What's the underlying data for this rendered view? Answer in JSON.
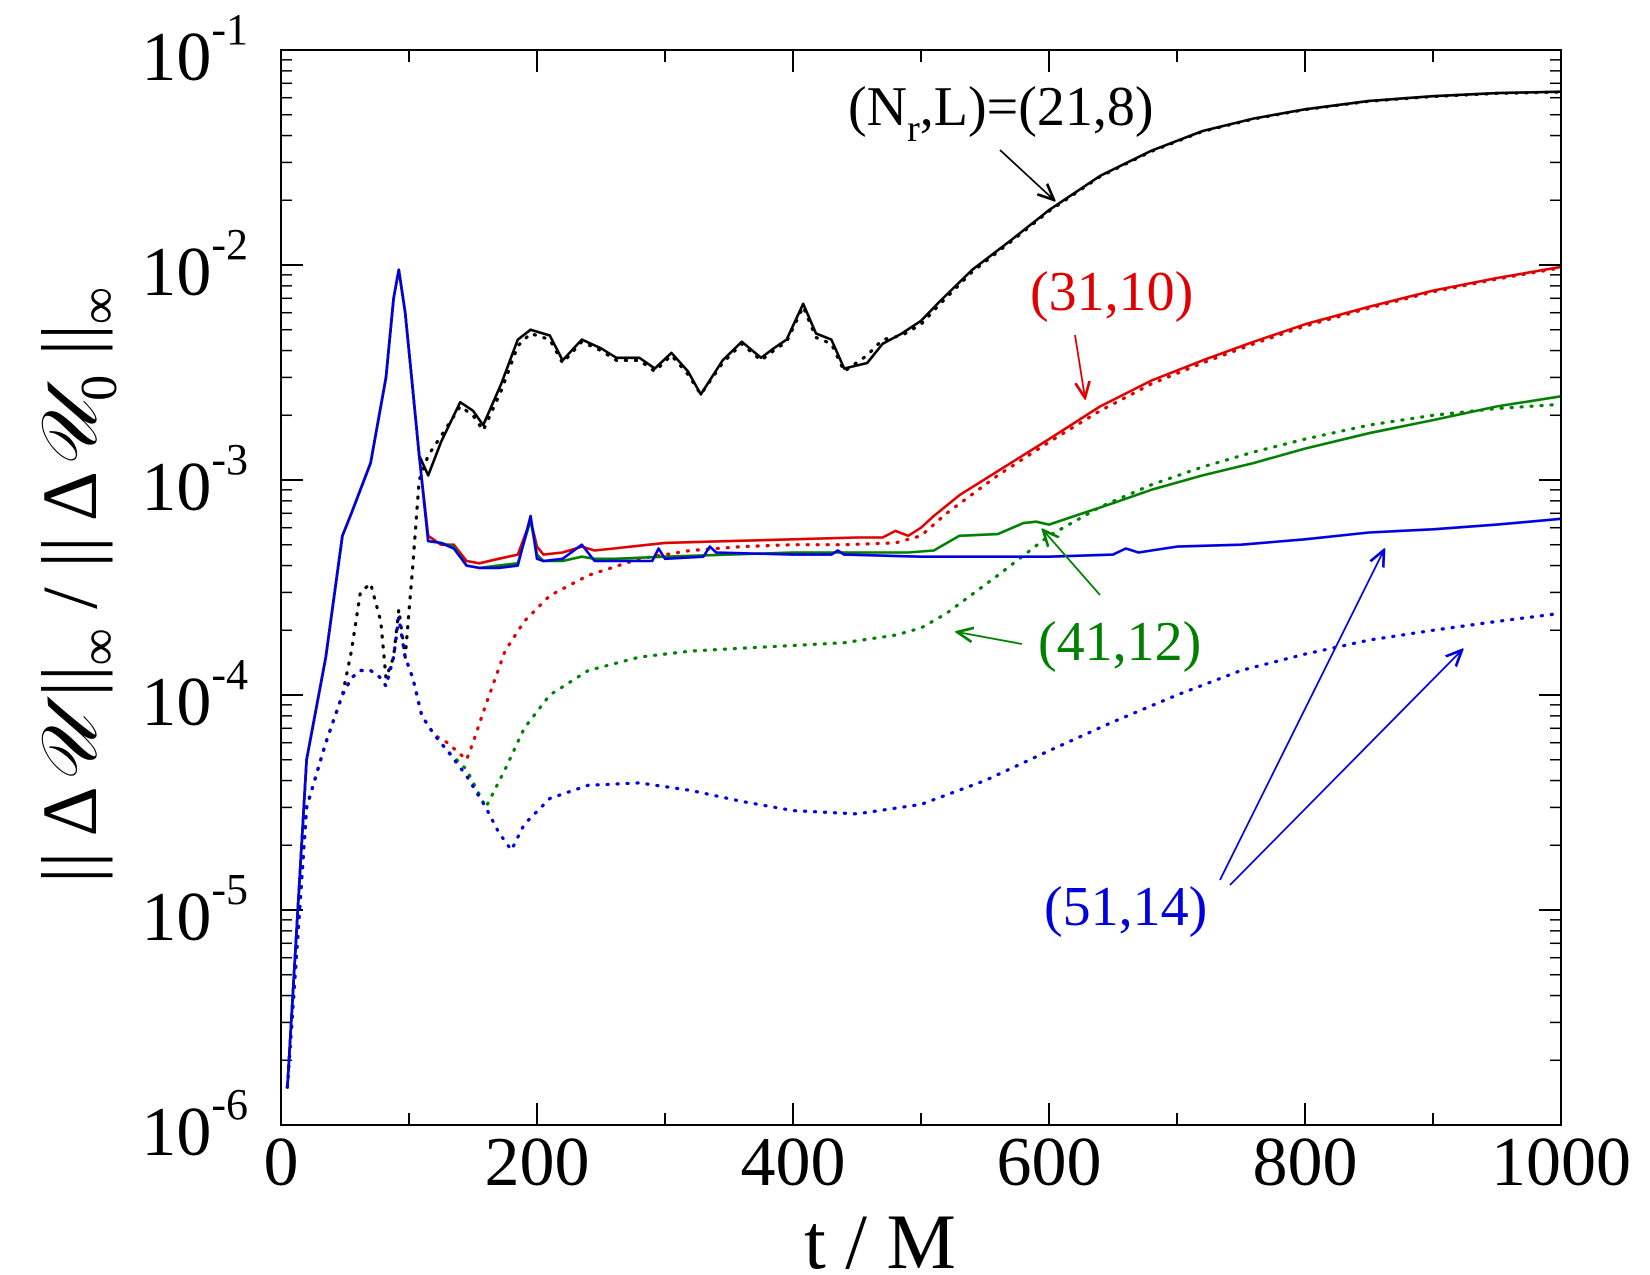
{
  "chart_data": {
    "type": "line",
    "xlabel": "t / M",
    "ylabel_parts": [
      "|| Δ",
      "𝒰",
      " ||",
      "∞",
      " / || Δ",
      "𝒰",
      "0",
      " ||",
      "∞"
    ],
    "xlim": [
      0,
      1000
    ],
    "ylim": [
      1e-06,
      0.1
    ],
    "yscale": "log",
    "x_ticks": [
      {
        "value": 0,
        "label": "0"
      },
      {
        "value": 200,
        "label": "200"
      },
      {
        "value": 400,
        "label": "400"
      },
      {
        "value": 600,
        "label": "600"
      },
      {
        "value": 800,
        "label": "800"
      },
      {
        "value": 1000,
        "label": "1000"
      }
    ],
    "y_ticks": [
      {
        "value": 1e-06,
        "base": "10",
        "exp": "-6"
      },
      {
        "value": 1e-05,
        "base": "10",
        "exp": "-5"
      },
      {
        "value": 0.0001,
        "base": "10",
        "exp": "-4"
      },
      {
        "value": 0.001,
        "base": "10",
        "exp": "-3"
      },
      {
        "value": 0.01,
        "base": "10",
        "exp": "-2"
      },
      {
        "value": 0.1,
        "base": "10",
        "exp": "-1"
      }
    ],
    "grid": false,
    "series": [
      {
        "key": "s21_8_solid",
        "color": "#000000",
        "style": "solid",
        "x": [
          5,
          20,
          35,
          48,
          55,
          70,
          82,
          88,
          92,
          97,
          102,
          108,
          115,
          125,
          140,
          150,
          158,
          172,
          185,
          195,
          210,
          220,
          235,
          250,
          262,
          280,
          292,
          305,
          318,
          328,
          345,
          360,
          375,
          385,
          395,
          408,
          418,
          430,
          440,
          458,
          470,
          485,
          500,
          515,
          540,
          570,
          600,
          640,
          680,
          720,
          760,
          800,
          850,
          900,
          950,
          1000
        ],
        "y": [
          1.5e-06,
          5e-05,
          0.00015,
          0.00055,
          0.0007,
          0.0012,
          0.003,
          0.007,
          0.0095,
          0.006,
          0.003,
          0.0013,
          0.00105,
          0.0015,
          0.0023,
          0.0021,
          0.0018,
          0.0028,
          0.0045,
          0.005,
          0.0047,
          0.0036,
          0.0045,
          0.0041,
          0.0037,
          0.0037,
          0.0033,
          0.0039,
          0.0032,
          0.0025,
          0.0036,
          0.0044,
          0.0037,
          0.0041,
          0.0045,
          0.0066,
          0.0048,
          0.0045,
          0.0033,
          0.0035,
          0.0043,
          0.0048,
          0.0055,
          0.0068,
          0.0095,
          0.013,
          0.018,
          0.026,
          0.034,
          0.042,
          0.048,
          0.053,
          0.058,
          0.061,
          0.063,
          0.064
        ]
      },
      {
        "key": "s21_8_dotted",
        "color": "#000000",
        "style": "dotted",
        "x": [
          5,
          20,
          35,
          48,
          55,
          62,
          70,
          78,
          82,
          88,
          92,
          97,
          103,
          108,
          115,
          125,
          140,
          150,
          158,
          172,
          185,
          195,
          210,
          220,
          235,
          250,
          262,
          280,
          292,
          305,
          318,
          328,
          345,
          360,
          375,
          385,
          395,
          408,
          418,
          430,
          440,
          458,
          470,
          485,
          500,
          515,
          540,
          570,
          600,
          640,
          680,
          720,
          760,
          800,
          850,
          900,
          950,
          1000
        ],
        "y": [
          1.5e-06,
          3e-05,
          6e-05,
          0.0001,
          0.00016,
          0.0003,
          0.00033,
          0.00022,
          0.00012,
          0.00015,
          0.00025,
          0.00015,
          0.0004,
          0.001,
          0.0013,
          0.0016,
          0.0022,
          0.002,
          0.0017,
          0.0026,
          0.0042,
          0.0048,
          0.0045,
          0.0035,
          0.0044,
          0.004,
          0.0036,
          0.0036,
          0.0032,
          0.0038,
          0.0031,
          0.0025,
          0.0035,
          0.0043,
          0.0036,
          0.004,
          0.0044,
          0.0064,
          0.0046,
          0.0043,
          0.0032,
          0.0038,
          0.0045,
          0.0047,
          0.0053,
          0.0066,
          0.0093,
          0.0128,
          0.0178,
          0.0258,
          0.0338,
          0.0418,
          0.0478,
          0.0528,
          0.0578,
          0.0608,
          0.0628,
          0.0638
        ]
      },
      {
        "key": "s31_10_solid",
        "color": "#e00000",
        "style": "solid",
        "x": [
          5,
          20,
          35,
          48,
          55,
          70,
          82,
          88,
          92,
          97,
          102,
          108,
          115,
          125,
          135,
          145,
          155,
          170,
          185,
          195,
          200,
          205,
          220,
          235,
          245,
          260,
          300,
          350,
          400,
          450,
          470,
          480,
          490,
          500,
          510,
          530,
          560,
          600,
          640,
          680,
          720,
          760,
          800,
          850,
          900,
          950,
          1000
        ],
        "y": [
          1.5e-06,
          5e-05,
          0.00015,
          0.00055,
          0.0007,
          0.0012,
          0.003,
          0.007,
          0.0095,
          0.006,
          0.003,
          0.0013,
          0.00055,
          0.0005,
          0.0005,
          0.00042,
          0.00041,
          0.00043,
          0.00045,
          0.00065,
          0.00049,
          0.00045,
          0.00046,
          0.00049,
          0.00047,
          0.00048,
          0.00051,
          0.00052,
          0.00053,
          0.00054,
          0.00054,
          0.00058,
          0.00055,
          0.0006,
          0.00068,
          0.00085,
          0.0011,
          0.00155,
          0.0022,
          0.0029,
          0.0036,
          0.0044,
          0.0053,
          0.0064,
          0.0076,
          0.0087,
          0.0098
        ]
      },
      {
        "key": "s31_10_dotted",
        "color": "#e00000",
        "style": "dotted",
        "x": [
          5,
          20,
          35,
          48,
          55,
          62,
          70,
          78,
          82,
          88,
          92,
          97,
          103,
          110,
          120,
          130,
          145,
          150,
          160,
          175,
          190,
          210,
          240,
          280,
          320,
          360,
          400,
          440,
          480,
          500,
          520,
          560,
          600,
          640,
          680,
          720,
          760,
          800,
          850,
          900,
          950,
          1000
        ],
        "y": [
          1.5e-06,
          3e-05,
          6e-05,
          0.0001,
          0.00012,
          0.00013,
          0.00013,
          0.00012,
          0.00011,
          0.00015,
          0.00023,
          0.00015,
          0.00012,
          8e-05,
          6.5e-05,
          6e-05,
          5e-05,
          6e-05,
          9e-05,
          0.00016,
          0.00022,
          0.00029,
          0.00036,
          0.00043,
          0.00047,
          0.00049,
          0.0005,
          0.0005,
          0.00051,
          0.00055,
          0.0007,
          0.00105,
          0.0015,
          0.0021,
          0.0028,
          0.0035,
          0.0043,
          0.0052,
          0.0063,
          0.0075,
          0.0086,
          0.0097
        ]
      },
      {
        "key": "s41_12_solid",
        "color": "#008000",
        "style": "solid",
        "x": [
          5,
          20,
          35,
          48,
          55,
          70,
          82,
          88,
          92,
          97,
          102,
          108,
          115,
          125,
          135,
          145,
          155,
          170,
          185,
          195,
          200,
          205,
          220,
          235,
          245,
          260,
          300,
          350,
          400,
          450,
          490,
          510,
          530,
          560,
          580,
          590,
          600,
          620,
          650,
          680,
          720,
          760,
          800,
          850,
          900,
          950,
          1000
        ],
        "y": [
          1.5e-06,
          5e-05,
          0.00015,
          0.00055,
          0.0007,
          0.0012,
          0.003,
          0.007,
          0.0095,
          0.006,
          0.003,
          0.0013,
          0.00052,
          0.00051,
          0.00049,
          0.0004,
          0.00039,
          0.0004,
          0.00041,
          0.00065,
          0.00045,
          0.00042,
          0.00042,
          0.00044,
          0.00043,
          0.00043,
          0.00044,
          0.00045,
          0.00046,
          0.00046,
          0.00046,
          0.00047,
          0.00055,
          0.00056,
          0.00063,
          0.00064,
          0.00062,
          0.00068,
          0.00078,
          0.0009,
          0.00105,
          0.0012,
          0.0014,
          0.00165,
          0.0019,
          0.0022,
          0.00245
        ]
      },
      {
        "key": "s41_12_dotted",
        "color": "#008000",
        "style": "dotted",
        "x": [
          5,
          20,
          35,
          48,
          55,
          62,
          70,
          78,
          82,
          88,
          92,
          97,
          103,
          110,
          120,
          130,
          145,
          160,
          175,
          190,
          210,
          240,
          280,
          320,
          360,
          400,
          440,
          480,
          500,
          520,
          560,
          600,
          640,
          680,
          720,
          760,
          800,
          850,
          900,
          950,
          1000
        ],
        "y": [
          1.5e-06,
          3e-05,
          6e-05,
          0.0001,
          0.00012,
          0.00013,
          0.00013,
          0.00012,
          0.00011,
          0.00015,
          0.00023,
          0.00015,
          0.00012,
          8e-05,
          6.5e-05,
          5.5e-05,
          4.5e-05,
          3e-05,
          4.5e-05,
          7e-05,
          0.0001,
          0.00013,
          0.00015,
          0.00016,
          0.000165,
          0.00017,
          0.000175,
          0.00019,
          0.000205,
          0.00024,
          0.00036,
          0.00055,
          0.00075,
          0.00095,
          0.00115,
          0.00135,
          0.00155,
          0.0018,
          0.002,
          0.00215,
          0.00225
        ]
      },
      {
        "key": "s51_14_solid",
        "color": "#0000e0",
        "style": "solid",
        "x": [
          5,
          20,
          35,
          48,
          55,
          70,
          82,
          88,
          92,
          97,
          102,
          108,
          115,
          125,
          135,
          145,
          155,
          170,
          185,
          195,
          200,
          205,
          220,
          235,
          245,
          260,
          290,
          295,
          300,
          330,
          335,
          340,
          400,
          430,
          435,
          440,
          500,
          600,
          650,
          660,
          670,
          680,
          700,
          750,
          800,
          850,
          900,
          950,
          1000
        ],
        "y": [
          1.5e-06,
          5e-05,
          0.00015,
          0.00055,
          0.0007,
          0.0012,
          0.003,
          0.007,
          0.0095,
          0.006,
          0.003,
          0.0013,
          0.00052,
          0.00051,
          0.00048,
          0.0004,
          0.00039,
          0.00039,
          0.0004,
          0.00068,
          0.00043,
          0.00042,
          0.00043,
          0.0005,
          0.00042,
          0.00042,
          0.00042,
          0.00048,
          0.00043,
          0.00044,
          0.00049,
          0.00046,
          0.00045,
          0.00045,
          0.00047,
          0.00045,
          0.00044,
          0.00044,
          0.00045,
          0.00048,
          0.00046,
          0.00047,
          0.00049,
          0.0005,
          0.00053,
          0.00057,
          0.00059,
          0.00062,
          0.00066
        ]
      },
      {
        "key": "s51_14_dotted",
        "color": "#0000e0",
        "style": "dotted",
        "x": [
          5,
          20,
          35,
          48,
          55,
          62,
          70,
          78,
          82,
          88,
          92,
          97,
          103,
          110,
          120,
          130,
          145,
          160,
          170,
          180,
          190,
          210,
          240,
          280,
          320,
          360,
          400,
          450,
          500,
          550,
          600,
          650,
          700,
          750,
          800,
          850,
          900,
          950,
          1000
        ],
        "y": [
          1.5e-06,
          3e-05,
          6e-05,
          0.0001,
          0.00012,
          0.00013,
          0.00013,
          0.00012,
          0.00011,
          0.00015,
          0.00023,
          0.00015,
          0.00012,
          8e-05,
          6.5e-05,
          5.5e-05,
          4.2e-05,
          3e-05,
          2.3e-05,
          1.9e-05,
          2.5e-05,
          3.3e-05,
          3.8e-05,
          3.9e-05,
          3.6e-05,
          3.2e-05,
          2.9e-05,
          2.8e-05,
          3.1e-05,
          4e-05,
          5.5e-05,
          7.5e-05,
          0.0001,
          0.00013,
          0.000155,
          0.00018,
          0.0002,
          0.00022,
          0.00024
        ]
      }
    ],
    "annotations": [
      {
        "key": "ann21",
        "label_parts": [
          "(N",
          "r",
          ",L)=(21,8)"
        ],
        "color": "#000000"
      },
      {
        "key": "ann31",
        "label": "(31,10)",
        "color": "#e00000"
      },
      {
        "key": "ann41",
        "label": "(41,12)",
        "color": "#008000"
      },
      {
        "key": "ann51",
        "label": "(51,14)",
        "color": "#0000e0"
      }
    ]
  }
}
